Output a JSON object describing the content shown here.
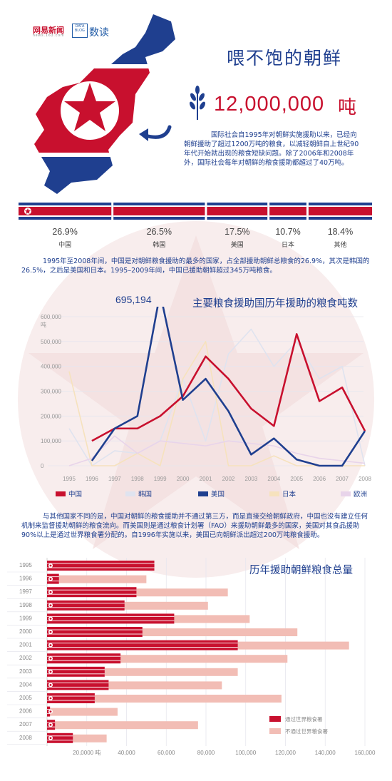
{
  "header": {
    "brand_name": "网易新闻",
    "brand_url": "news.163.com",
    "datablog_label": "DATA BLOG",
    "channel": "数读",
    "title": "喂不饱的朝鲜",
    "total_number": "12,000,000",
    "total_unit": "吨",
    "intro": "国际社会自1995年对朝鲜实施援助以来，已经向朝鲜援助了超过1200万吨的粮食，以减轻朝鲜自上世纪90年代开始就出现的粮食短缺问题。除了2006年和2008年外，国际社会每年对朝鲜的粮食援助都超过了40万吨。"
  },
  "shares": [
    {
      "country": "中国",
      "percent": "26.9%",
      "value": 26.9
    },
    {
      "country": "韩国",
      "percent": "26.5%",
      "value": 26.5
    },
    {
      "country": "美国",
      "percent": "17.5%",
      "value": 17.5
    },
    {
      "country": "日本",
      "percent": "10.7%",
      "value": 10.7
    },
    {
      "country": "其他",
      "percent": "18.4%",
      "value": 18.4
    }
  ],
  "para1": "1995年至2008年间，中国是对朝鲜粮食援助的最多的国家，占全部援助朝鲜总粮食的26.9%，其次是韩国的26.5%，之后是美国和日本。1995–2009年间，中国已援助朝鲜超过345万吨粮食。",
  "para2": "与其他国家不同的是，中国对朝鲜的粮食援助并不通过第三方，而是直接交给朝鲜政府，中国也没有建立任何机制来监督援助朝鲜的粮食流向。而美国则是通过粮食计划署（FAO）来援助朝鲜最多的国家，美国对其食品援助90%以上是通过世界粮食署分配的。自1996年实施以来，美国已向朝鲜派出超过200万吨粮食援助。",
  "colors": {
    "red": "#c8102e",
    "blue": "#1f3f8f",
    "korea_line": "#dfe3ef",
    "japan_line": "#f6e2bd",
    "europe_line": "#e8d4ea",
    "pink_bar": "#f2bdb5"
  },
  "chart_data": [
    {
      "type": "line",
      "title": "主要粮食援助国历年援助的粮食吨数",
      "annotation": "695,194",
      "ylabel": "吨",
      "ylim": [
        0,
        600000
      ],
      "yticks": [
        "0",
        "100,000",
        "200,000",
        "300,000",
        "400,000",
        "500,000",
        "600,000"
      ],
      "x": [
        "1995",
        "1996",
        "1997",
        "1998",
        "1999",
        "2000",
        "2001",
        "2002",
        "2003",
        "2004",
        "2005",
        "2006",
        "2007",
        "2008"
      ],
      "grid": true,
      "legend_position": "bottom",
      "series": [
        {
          "name": "中国",
          "color": "#c8102e",
          "values": [
            null,
            100000,
            150000,
            150000,
            200000,
            280000,
            440000,
            350000,
            230000,
            160000,
            530000,
            260000,
            315000,
            140000
          ]
        },
        {
          "name": "韩国",
          "color": "#dfe3ef",
          "values": [
            150000,
            0,
            60000,
            50000,
            100000,
            350000,
            100000,
            450000,
            550000,
            400000,
            500000,
            350000,
            400000,
            0
          ]
        },
        {
          "name": "美国",
          "color": "#1f3f8f",
          "values": [
            null,
            20000,
            150000,
            200000,
            695194,
            265000,
            350000,
            220000,
            45000,
            110000,
            25000,
            0,
            0,
            140000
          ]
        },
        {
          "name": "日本",
          "color": "#f6e2bd",
          "values": [
            380000,
            0,
            0,
            50000,
            0,
            350000,
            500000,
            0,
            0,
            40000,
            0,
            0,
            0,
            0
          ]
        },
        {
          "name": "欧洲",
          "color": "#e8d4ea",
          "values": [
            0,
            30000,
            120000,
            50000,
            100000,
            90000,
            80000,
            100000,
            90000,
            80000,
            50000,
            30000,
            20000,
            10000
          ]
        }
      ]
    },
    {
      "type": "bar",
      "orientation": "horizontal",
      "stacked": true,
      "title": "历年援助朝鲜粮食总量",
      "categories": [
        "1995",
        "1996",
        "1997",
        "1998",
        "1999",
        "2000",
        "2001",
        "2002",
        "2003",
        "2004",
        "2005",
        "2006",
        "2007",
        "2008"
      ],
      "xticks": [
        "20,0000 吨",
        "40,000",
        "60,000",
        "80,000",
        "100,000",
        "120,000",
        "140,000",
        "160,000"
      ],
      "xlim": [
        0,
        160000
      ],
      "legend_position": "bottom-right",
      "series": [
        {
          "name": "通过世界粮食署",
          "color": "#c8102e",
          "values": [
            54000,
            6000,
            45000,
            39000,
            64000,
            48000,
            96000,
            37000,
            29000,
            31000,
            24000,
            1500,
            4000,
            13000
          ]
        },
        {
          "name": "不通过世界粮食署",
          "color": "#f2bdb5",
          "values": [
            0,
            44000,
            46000,
            42000,
            38000,
            78000,
            56000,
            84000,
            67000,
            57000,
            94000,
            34000,
            72000,
            17000
          ]
        }
      ]
    }
  ]
}
